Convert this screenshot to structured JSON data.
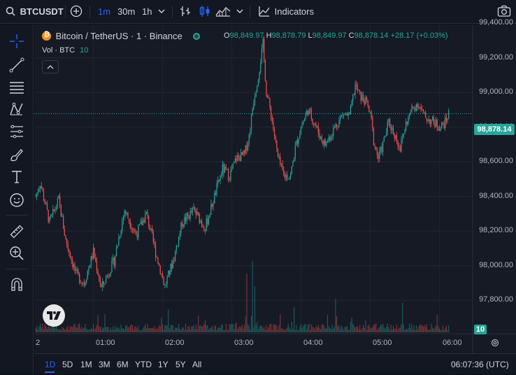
{
  "toolbar": {
    "symbol": "BTCUSDT",
    "intervals": [
      "1m",
      "30m",
      "1h"
    ],
    "indicators_label": "Indicators"
  },
  "legend": {
    "title": "Bitcoin / TetherUS · 1 · Binance",
    "o_label": "O",
    "o_value": "98,849.97",
    "h_label": "H",
    "h_value": "98,878.79",
    "l_label": "L",
    "l_value": "98,849.97",
    "c_label": "C",
    "c_value": "98,878.14",
    "change": "+28.17 (+0.03%)",
    "vol_label": "Vol · BTC",
    "vol_value": "10"
  },
  "price_axis": {
    "ticks": [
      "99,400.00",
      "99,200.00",
      "99,000.00",
      "98,800.00",
      "98,600.00",
      "98,400.00",
      "98,200.00",
      "98,000.00",
      "97,800.00"
    ],
    "current_price": "98,878.14",
    "volume_badge": "10"
  },
  "time_axis": {
    "ticks": [
      "2",
      "01:00",
      "02:00",
      "03:00",
      "04:00",
      "05:00",
      "06:00"
    ]
  },
  "bottom": {
    "ranges": [
      "1D",
      "5D",
      "1M",
      "3M",
      "6M",
      "YTD",
      "1Y",
      "5Y",
      "All"
    ],
    "active_range": "1D",
    "clock": "06:07:36 (UTC)"
  },
  "colors": {
    "up": "#26a69a",
    "down": "#ef5350",
    "accent": "#2962ff",
    "background": "#161a25"
  },
  "chart_data": {
    "type": "candlestick",
    "x_range": [
      "00:10",
      "06:08"
    ],
    "ylim": [
      97700,
      99450
    ],
    "interval": "1m",
    "close_path": [
      {
        "t": "00:10",
        "p": 98400
      },
      {
        "t": "00:14",
        "p": 98480
      },
      {
        "t": "00:22",
        "p": 98250
      },
      {
        "t": "00:30",
        "p": 98380
      },
      {
        "t": "00:36",
        "p": 98150
      },
      {
        "t": "00:45",
        "p": 97950
      },
      {
        "t": "00:52",
        "p": 97900
      },
      {
        "t": "01:00",
        "p": 98080
      },
      {
        "t": "01:07",
        "p": 97870
      },
      {
        "t": "01:18",
        "p": 98030
      },
      {
        "t": "01:27",
        "p": 98320
      },
      {
        "t": "01:37",
        "p": 98180
      },
      {
        "t": "01:46",
        "p": 98300
      },
      {
        "t": "01:55",
        "p": 98050
      },
      {
        "t": "02:02",
        "p": 97880
      },
      {
        "t": "02:10",
        "p": 98050
      },
      {
        "t": "02:17",
        "p": 98250
      },
      {
        "t": "02:27",
        "p": 98320
      },
      {
        "t": "02:37",
        "p": 98220
      },
      {
        "t": "02:45",
        "p": 98400
      },
      {
        "t": "02:52",
        "p": 98560
      },
      {
        "t": "02:58",
        "p": 98520
      },
      {
        "t": "03:04",
        "p": 98620
      },
      {
        "t": "03:11",
        "p": 98640
      },
      {
        "t": "03:15",
        "p": 98750
      },
      {
        "t": "03:19",
        "p": 98960
      },
      {
        "t": "03:23",
        "p": 99100
      },
      {
        "t": "03:27",
        "p": 99280
      },
      {
        "t": "03:30",
        "p": 99000
      },
      {
        "t": "03:34",
        "p": 98880
      },
      {
        "t": "03:40",
        "p": 98620
      },
      {
        "t": "03:45",
        "p": 98520
      },
      {
        "t": "03:51",
        "p": 98520
      },
      {
        "t": "03:55",
        "p": 98680
      },
      {
        "t": "04:00",
        "p": 98800
      },
      {
        "t": "04:06",
        "p": 98900
      },
      {
        "t": "04:12",
        "p": 98820
      },
      {
        "t": "04:17",
        "p": 98740
      },
      {
        "t": "04:21",
        "p": 98700
      },
      {
        "t": "04:26",
        "p": 98760
      },
      {
        "t": "04:31",
        "p": 98820
      },
      {
        "t": "04:37",
        "p": 98880
      },
      {
        "t": "04:42",
        "p": 98860
      },
      {
        "t": "04:47",
        "p": 99040
      },
      {
        "t": "04:51",
        "p": 98980
      },
      {
        "t": "04:57",
        "p": 98940
      },
      {
        "t": "05:01",
        "p": 98840
      },
      {
        "t": "05:03",
        "p": 98720
      },
      {
        "t": "05:07",
        "p": 98620
      },
      {
        "t": "05:11",
        "p": 98700
      },
      {
        "t": "05:16",
        "p": 98830
      },
      {
        "t": "05:21",
        "p": 98760
      },
      {
        "t": "05:26",
        "p": 98680
      },
      {
        "t": "05:31",
        "p": 98820
      },
      {
        "t": "05:36",
        "p": 98900
      },
      {
        "t": "05:41",
        "p": 98940
      },
      {
        "t": "05:47",
        "p": 98860
      },
      {
        "t": "05:52",
        "p": 98840
      },
      {
        "t": "05:57",
        "p": 98820
      },
      {
        "t": "06:01",
        "p": 98800
      },
      {
        "t": "06:05",
        "p": 98830
      },
      {
        "t": "06:08",
        "p": 98878.14
      }
    ],
    "volume_spikes": [
      {
        "t": "00:26",
        "v": 4
      },
      {
        "t": "03:13",
        "v": 14
      },
      {
        "t": "03:18",
        "v": 17
      },
      {
        "t": "03:20",
        "v": 11
      },
      {
        "t": "04:30",
        "v": 8
      },
      {
        "t": "05:28",
        "v": 7
      }
    ]
  }
}
